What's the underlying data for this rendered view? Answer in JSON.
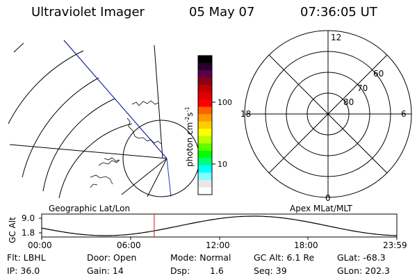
{
  "header": {
    "title": "Ultraviolet Imager",
    "date": "05 May 07",
    "time": "07:36:05 UT"
  },
  "colorbar": {
    "unit_label": "photon cm",
    "unit_exp1": "-2",
    "unit_mid": "s",
    "unit_exp2": "-1",
    "ticks": [
      "100",
      "10"
    ],
    "colors": [
      "#000000",
      "#2a0030",
      "#5a0048",
      "#8a0018",
      "#c00000",
      "#e00000",
      "#ff0000",
      "#ff6000",
      "#ff9a00",
      "#ffcc00",
      "#ffff00",
      "#b8ff00",
      "#60ff00",
      "#00ff00",
      "#00ff80",
      "#00ffff",
      "#80ffff",
      "#e8e8e8",
      "#ffffff"
    ]
  },
  "polar_plot": {
    "lat_labels": [
      "60",
      "70",
      "80"
    ],
    "mlt_labels": [
      "12",
      "18",
      "6",
      "0"
    ]
  },
  "map_labels": {
    "geographic": "Geographic Lat/Lon",
    "apex": "Apex MLat/MLT"
  },
  "orbit": {
    "y_axis_label": "GC Alt",
    "y_ticks": [
      "9.0",
      "1.8"
    ],
    "x_ticks": [
      "00:00",
      "06:00",
      "12:00",
      "18:00",
      "23:59"
    ],
    "current_time_hours": 7.6
  },
  "footer": {
    "filter": "Flt: LBHL",
    "door": "Door: Open",
    "mode": "Mode: Normal",
    "gc_alt": "GC Alt: 6.1 Re",
    "glat": "GLat: -68.3",
    "ip": "IP: 36.0",
    "gain": "Gain: 14",
    "dsp_label": "Dsp:",
    "dsp_value": "1.6",
    "seq": "Seq: 39",
    "glon": "GLon: 202.3"
  }
}
